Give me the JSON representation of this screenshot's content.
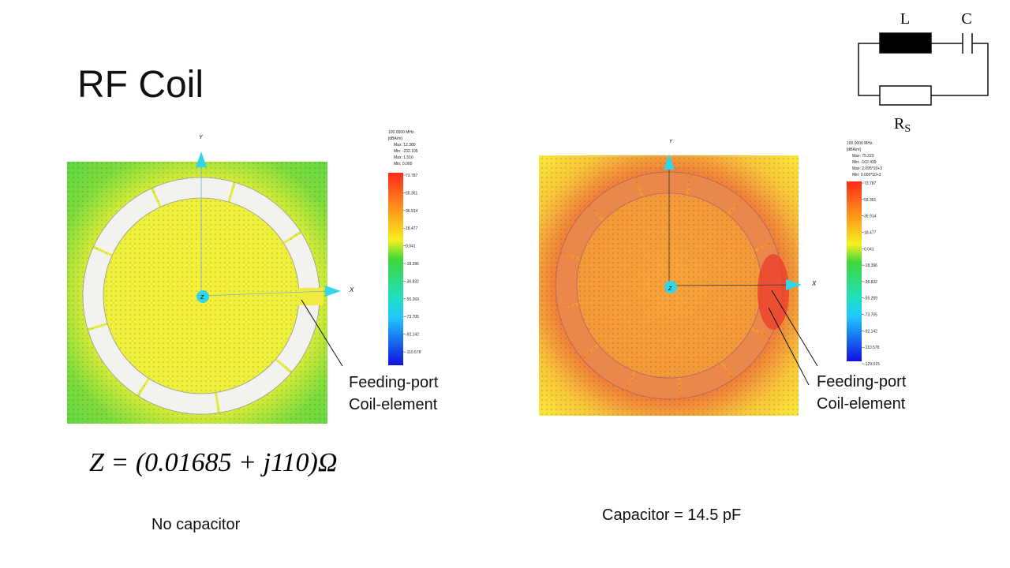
{
  "title": "RF Coil",
  "circuit": {
    "inductor": "L",
    "capacitor": "C",
    "resistor": {
      "label": "R",
      "subscript": "S"
    }
  },
  "left_plot": {
    "axes": {
      "y": "Y",
      "x": "X",
      "z": "Z"
    },
    "legend": {
      "header": [
        "100.0000 MHz.",
        "[dBA/m]",
        "Max:  12.380",
        "Min: -232.105",
        "Max:   1.510",
        "Min:   0.000"
      ],
      "ticks": [
        "73.787",
        "55.351",
        "36.914",
        "18.477",
        "0.041",
        "-18.396",
        "-36.832",
        "-55.269",
        "-73.705",
        "-92.142",
        "-110.578"
      ]
    },
    "annotations": [
      "Feeding-port",
      "Coil-element"
    ],
    "equation": "Z = (0.01685 + j110)Ω",
    "caption": "No capacitor"
  },
  "right_plot": {
    "axes": {
      "y": "Y",
      "x": "X",
      "z": "Z"
    },
    "legend": {
      "header": [
        "100.0000 MHz.",
        "[dBA/m]",
        "Max:  75.223",
        "Min: -102.439",
        "Max:  2.095*10+3",
        "Min:  0.000*10+3"
      ],
      "ticks": [
        "73.787",
        "55.351",
        "36.914",
        "18.477",
        "0.041",
        "-18.396",
        "-36.832",
        "-55.269",
        "-73.705",
        "-92.142",
        "-110.578",
        "-129.015"
      ]
    },
    "annotations": [
      "Feeding-port",
      "Coil-element"
    ],
    "caption": "Capacitor = 14.5 pF"
  }
}
